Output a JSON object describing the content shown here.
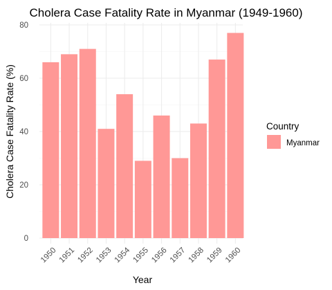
{
  "chart_data": {
    "type": "bar",
    "title": "Cholera Case Fatality Rate in Myanmar (1949-1960)",
    "xlabel": "Year",
    "ylabel": "Cholera Case Fatality Rate (%)",
    "categories": [
      "1950",
      "1951",
      "1952",
      "1953",
      "1954",
      "1955",
      "1956",
      "1957",
      "1958",
      "1959",
      "1960"
    ],
    "series": [
      {
        "name": "Myanmar",
        "values": [
          66,
          69,
          71,
          41,
          54,
          29,
          46,
          30,
          43,
          67,
          77
        ]
      }
    ],
    "yticks": [
      0,
      20,
      40,
      60,
      80
    ],
    "ylim": [
      0,
      80
    ],
    "grid": true,
    "legend": {
      "title": "Country",
      "position": "right"
    },
    "colors": {
      "bar": "#ff9896"
    }
  }
}
